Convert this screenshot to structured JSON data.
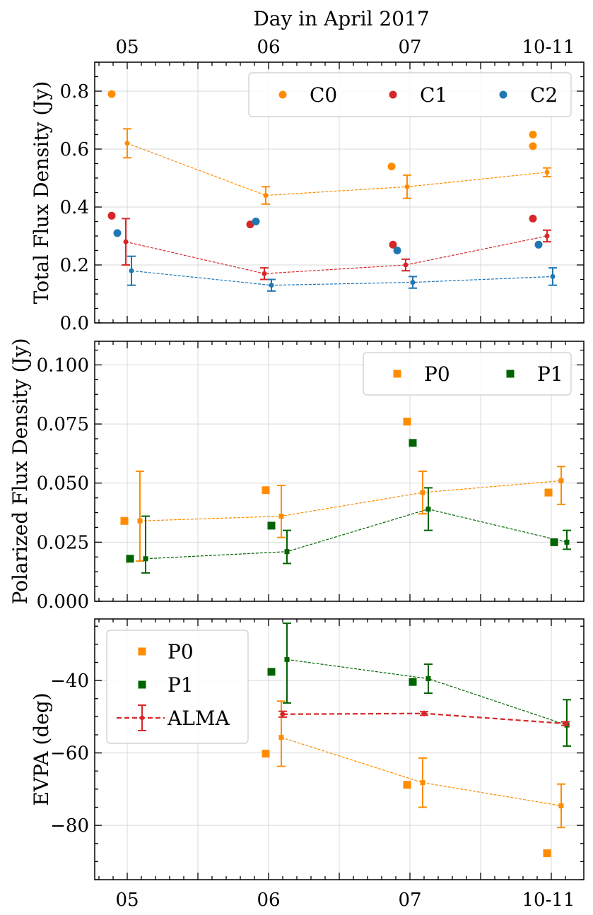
{
  "figure": {
    "top_axis_title": "Day in April 2017",
    "top_tick_labels": [
      "05",
      "06",
      "07",
      "10-11"
    ],
    "bottom_tick_labels": [
      "05",
      "06",
      "07",
      "10-11"
    ]
  },
  "colors": {
    "orange": "#ff8c00",
    "red": "#d62728",
    "blue": "#1f77b4",
    "green": "#006400"
  },
  "chart_data": [
    {
      "type": "scatter",
      "panel": "total-flux",
      "ylabel": "Total Flux Density (Jy)",
      "xlim": [
        -0.23,
        3.23
      ],
      "ylim": [
        0.0,
        0.9
      ],
      "yticks": [
        0.0,
        0.2,
        0.4,
        0.6,
        0.8
      ],
      "ytick_labels": [
        "0.0",
        "0.2",
        "0.4",
        "0.6",
        "0.8"
      ],
      "categories": [
        "05",
        "06",
        "07",
        "10-11"
      ],
      "legend": {
        "placement": "top-right",
        "entries": [
          "C0",
          "C1",
          "C2"
        ]
      },
      "series": [
        {
          "name": "C0",
          "color": "orange",
          "marker": "circle",
          "x": [
            -0.11,
            2.87,
            1.87,
            2.87
          ],
          "y": [
            0.79,
            0.61,
            0.54,
            0.65
          ]
        },
        {
          "name": "C1",
          "color": "red",
          "marker": "circle",
          "x": [
            -0.11,
            0.87,
            1.88,
            2.87
          ],
          "y": [
            0.37,
            0.34,
            0.27,
            0.36
          ]
        },
        {
          "name": "C2",
          "color": "blue",
          "marker": "circle",
          "x": [
            -0.07,
            0.91,
            1.91,
            2.91
          ],
          "y": [
            0.31,
            0.35,
            0.25,
            0.27
          ]
        }
      ],
      "errorbar_series": [
        {
          "name": "C0 mean",
          "color": "orange",
          "x": [
            0.0,
            0.98,
            1.98,
            2.97
          ],
          "y": [
            0.62,
            0.44,
            0.47,
            0.52
          ],
          "err": [
            0.05,
            0.03,
            0.04,
            0.015
          ]
        },
        {
          "name": "C1 mean",
          "color": "red",
          "x": [
            -0.01,
            0.97,
            1.97,
            2.97
          ],
          "y": [
            0.28,
            0.17,
            0.2,
            0.3
          ],
          "err": [
            0.08,
            0.02,
            0.02,
            0.02
          ]
        },
        {
          "name": "C2 mean",
          "color": "blue",
          "x": [
            0.03,
            1.02,
            2.02,
            3.01
          ],
          "y": [
            0.18,
            0.13,
            0.14,
            0.16
          ],
          "err": [
            0.05,
            0.02,
            0.02,
            0.03
          ]
        }
      ]
    },
    {
      "type": "scatter",
      "panel": "polarized-flux",
      "ylabel": "Polarized Flux Density (Jy)",
      "xlim": [
        -0.23,
        3.23
      ],
      "ylim": [
        0.0,
        0.11
      ],
      "yticks": [
        0.0,
        0.025,
        0.05,
        0.075,
        0.1
      ],
      "ytick_labels": [
        "0.000",
        "0.025",
        "0.050",
        "0.075",
        "0.100"
      ],
      "categories": [
        "05",
        "06",
        "07",
        "10-11"
      ],
      "legend": {
        "placement": "top-right",
        "entries": [
          "P0",
          "P1"
        ]
      },
      "series": [
        {
          "name": "P0",
          "color": "orange",
          "marker": "square",
          "x": [
            -0.02,
            0.98,
            1.98,
            2.98
          ],
          "y": [
            0.034,
            0.047,
            0.076,
            0.046
          ]
        },
        {
          "name": "P1",
          "color": "green",
          "marker": "square",
          "x": [
            0.02,
            1.02,
            2.02,
            3.02
          ],
          "y": [
            0.018,
            0.032,
            0.067,
            0.025
          ]
        }
      ],
      "errorbar_series": [
        {
          "name": "P0 mean",
          "color": "orange",
          "x": [
            0.09,
            1.09,
            2.09,
            3.07
          ],
          "y": [
            0.034,
            0.036,
            0.046,
            0.051
          ],
          "err": [
            0.021,
            0.013,
            0.009,
            0.006
          ],
          "err_asym": [
            [
              0.017,
              0.009,
              0.009,
              0.01
            ],
            [
              0.021,
              0.013,
              0.009,
              0.006
            ]
          ]
        },
        {
          "name": "P1 mean",
          "color": "green",
          "x": [
            0.13,
            1.13,
            2.13,
            3.11
          ],
          "y": [
            0.018,
            0.021,
            0.039,
            0.025
          ],
          "err_asym": [
            [
              0.006,
              0.005,
              0.009,
              0.003
            ],
            [
              0.018,
              0.009,
              0.009,
              0.005
            ]
          ]
        }
      ]
    },
    {
      "type": "scatter",
      "panel": "evpa",
      "ylabel": "EVPA (deg)",
      "xlim": [
        -0.23,
        3.23
      ],
      "ylim": [
        -95,
        -23
      ],
      "yticks": [
        -80,
        -60,
        -40
      ],
      "ytick_labels": [
        "−80",
        "−60",
        "−40"
      ],
      "categories": [
        "05",
        "06",
        "07",
        "10-11"
      ],
      "legend": {
        "placement": "top-left",
        "entries": [
          "P0",
          "P1",
          "ALMA"
        ]
      },
      "series": [
        {
          "name": "P0",
          "color": "orange",
          "marker": "square",
          "x": [
            0.98,
            1.98,
            2.97
          ],
          "y": [
            -60.2,
            -68.8,
            -87.7
          ]
        },
        {
          "name": "P1",
          "color": "green",
          "marker": "square",
          "x": [
            1.02,
            2.02
          ],
          "y": [
            -37.6,
            -40.4
          ]
        }
      ],
      "errorbar_series": [
        {
          "name": "P0 mean",
          "color": "orange",
          "x": [
            1.09,
            2.09,
            3.07
          ],
          "y": [
            -55.7,
            -68.2,
            -74.6
          ],
          "err_asym": [
            [
              8.0,
              6.8,
              6.0
            ],
            [
              10.0,
              6.8,
              6.0
            ]
          ]
        },
        {
          "name": "P1 mean",
          "color": "green",
          "x": [
            1.13,
            2.13,
            3.11
          ],
          "y": [
            -34.2,
            -39.5,
            -52.3
          ],
          "err_asym": [
            [
              12.0,
              4.0,
              5.8
            ],
            [
              10.0,
              4.0,
              7.0
            ]
          ]
        },
        {
          "name": "ALMA",
          "color": "red",
          "marker": "diamond",
          "dashed": true,
          "x": [
            1.1,
            2.1,
            3.1
          ],
          "y": [
            -49.3,
            -49.1,
            -51.9
          ],
          "err": [
            0.8,
            0.5,
            0.5
          ]
        }
      ]
    }
  ]
}
